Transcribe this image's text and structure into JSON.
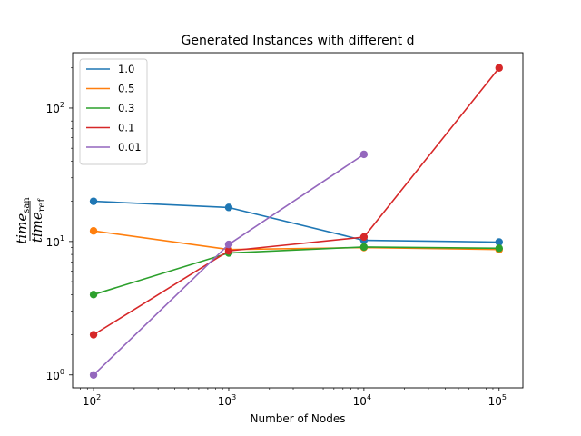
{
  "chart_data": {
    "type": "line",
    "title": "Generated Instances with different d",
    "xlabel": "Number of Nodes",
    "ylabel": {
      "numerator": "time",
      "numerator_sub": "san",
      "denominator": "time",
      "denominator_sub": "ref"
    },
    "x_scale": "log",
    "y_scale": "log",
    "xlim": [
      70,
      150000
    ],
    "ylim": [
      0.8,
      260
    ],
    "x_ticks": [
      {
        "value": 100,
        "base": "10",
        "exp": "2"
      },
      {
        "value": 1000,
        "base": "10",
        "exp": "3"
      },
      {
        "value": 10000,
        "base": "10",
        "exp": "4"
      },
      {
        "value": 100000,
        "base": "10",
        "exp": "5"
      }
    ],
    "y_ticks": [
      {
        "value": 1,
        "base": "10",
        "exp": "0"
      },
      {
        "value": 10,
        "base": "10",
        "exp": "1"
      },
      {
        "value": 100,
        "base": "10",
        "exp": "2"
      }
    ],
    "legend_position": "top-left",
    "grid": false,
    "series": [
      {
        "name": "1.0",
        "color": "#1f77b4",
        "x": [
          100,
          1000,
          10000,
          100000
        ],
        "y": [
          20,
          18,
          10.2,
          9.9
        ]
      },
      {
        "name": "0.5",
        "color": "#ff7f0e",
        "x": [
          100,
          1000,
          10000,
          100000
        ],
        "y": [
          12,
          8.7,
          9.0,
          8.7
        ]
      },
      {
        "name": "0.3",
        "color": "#2ca02c",
        "x": [
          100,
          1000,
          10000,
          100000
        ],
        "y": [
          4,
          8.2,
          9.1,
          8.9
        ]
      },
      {
        "name": "0.1",
        "color": "#d62728",
        "x": [
          100,
          1000,
          10000,
          100000
        ],
        "y": [
          2,
          8.5,
          10.8,
          200
        ]
      },
      {
        "name": "0.01",
        "color": "#9467bd",
        "x": [
          100,
          1000,
          10000
        ],
        "y": [
          1,
          9.5,
          45
        ]
      }
    ]
  }
}
